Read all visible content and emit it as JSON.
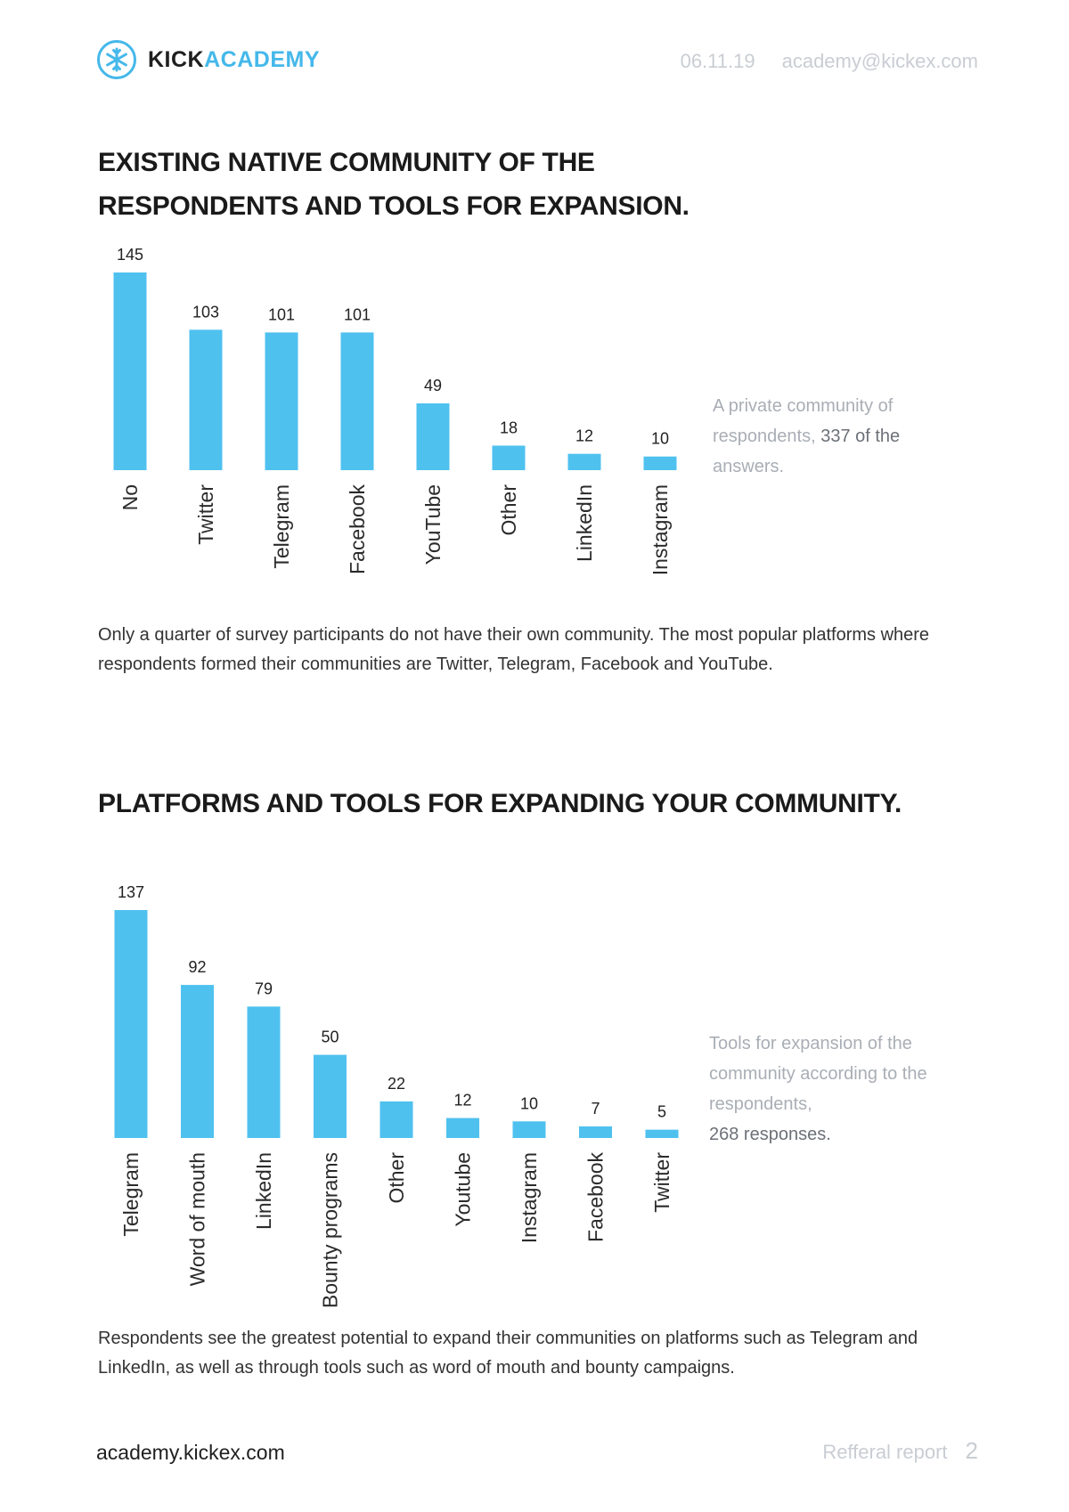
{
  "header": {
    "brand_part1": "KICK",
    "brand_part2": "ACADEMY",
    "date": "06.11.19",
    "email": "academy@kickex.com",
    "logo_icon": "snowflake-logo-icon"
  },
  "sections": [
    {
      "title": "EXISTING NATIVE COMMUNITY OF THE RESPONDENTS AND TOOLS FOR EXPANSION.",
      "note_text": "A private community of respondents, ",
      "note_highlight": "337 of the",
      "note_end": "answers.",
      "paragraph": "Only a quarter of survey participants do not have their own community. The most popular platforms where respondents formed their communities are Twitter, Telegram, Facebook and YouTube."
    },
    {
      "title": "PLATFORMS AND TOOLS FOR EXPANDING YOUR COMMUNITY.",
      "note_text": "Tools for expansion of the community according to the respondents,",
      "note_highlight": "268 responses.",
      "paragraph": "Respondents see the greatest potential to expand their communities on platforms such as Telegram and LinkedIn, as well as through tools such as word of mouth and bounty campaigns."
    }
  ],
  "chart_data": [
    {
      "type": "bar",
      "title": "EXISTING NATIVE COMMUNITY OF THE RESPONDENTS AND TOOLS FOR EXPANSION.",
      "categories": [
        "No",
        "Twitter",
        "Telegram",
        "Facebook",
        "YouTube",
        "Other",
        "LinkedIn",
        "Instagram"
      ],
      "values": [
        145,
        103,
        101,
        101,
        49,
        18,
        12,
        10
      ],
      "xlabel": "",
      "ylabel": "",
      "ylim": [
        0,
        145
      ],
      "grid": false,
      "color": "#4fc1ef"
    },
    {
      "type": "bar",
      "title": "PLATFORMS AND TOOLS FOR EXPANDING YOUR COMMUNITY.",
      "categories": [
        "Telegram",
        "Word of mouth",
        "LinkedIn",
        "Bounty programs",
        "Other",
        "Youtube",
        "Instagram",
        "Facebook",
        "Twitter"
      ],
      "values": [
        137,
        92,
        79,
        50,
        22,
        12,
        10,
        7,
        5
      ],
      "xlabel": "",
      "ylabel": "",
      "ylim": [
        0,
        137
      ],
      "grid": false,
      "color": "#4fc1ef"
    }
  ],
  "footer": {
    "site": "academy.kickex.com",
    "report": "Refferal report",
    "page": "2"
  }
}
